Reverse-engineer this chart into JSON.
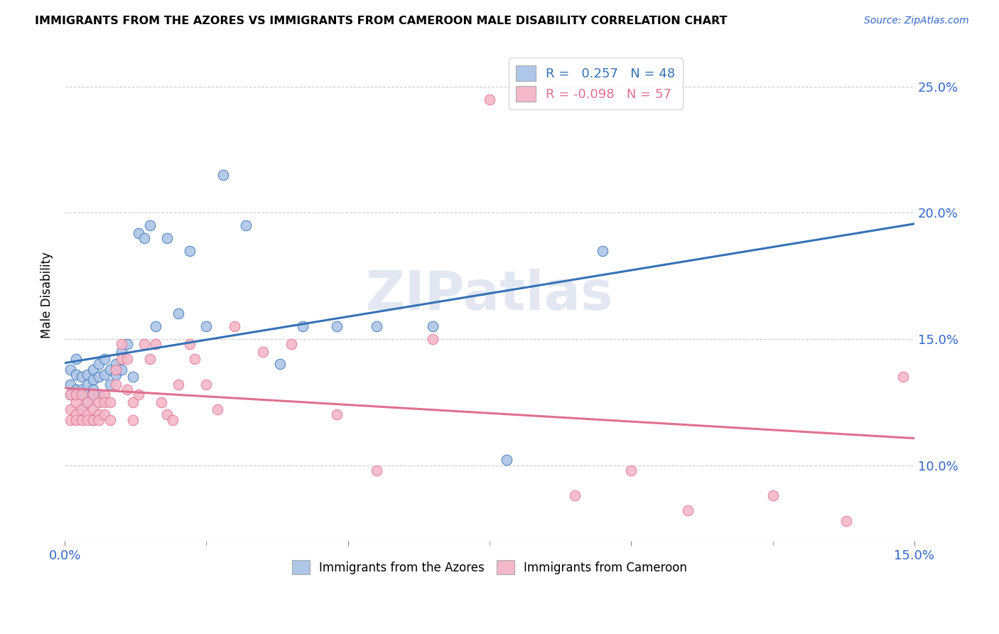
{
  "title": "IMMIGRANTS FROM THE AZORES VS IMMIGRANTS FROM CAMEROON MALE DISABILITY CORRELATION CHART",
  "source": "Source: ZipAtlas.com",
  "ylabel": "Male Disability",
  "legend1_label": "R =   0.257   N = 48",
  "legend2_label": "R = -0.098   N = 57",
  "legend1_color": "#aec6e8",
  "legend2_color": "#f4b8c8",
  "trend1_color": "#3472b5",
  "trend2_color": "#e07090",
  "watermark": "ZIPatlas",
  "azores_x": [
    0.001,
    0.001,
    0.001,
    0.002,
    0.002,
    0.002,
    0.003,
    0.003,
    0.003,
    0.003,
    0.004,
    0.004,
    0.004,
    0.004,
    0.005,
    0.005,
    0.005,
    0.005,
    0.006,
    0.006,
    0.006,
    0.007,
    0.007,
    0.008,
    0.008,
    0.009,
    0.009,
    0.01,
    0.01,
    0.011,
    0.012,
    0.013,
    0.014,
    0.015,
    0.016,
    0.018,
    0.02,
    0.022,
    0.025,
    0.028,
    0.032,
    0.038,
    0.042,
    0.048,
    0.055,
    0.065,
    0.078,
    0.095
  ],
  "azores_y": [
    0.138,
    0.132,
    0.128,
    0.136,
    0.13,
    0.142,
    0.135,
    0.13,
    0.128,
    0.122,
    0.136,
    0.132,
    0.128,
    0.125,
    0.138,
    0.134,
    0.13,
    0.118,
    0.14,
    0.135,
    0.128,
    0.142,
    0.136,
    0.138,
    0.132,
    0.14,
    0.136,
    0.145,
    0.138,
    0.148,
    0.135,
    0.192,
    0.19,
    0.195,
    0.155,
    0.19,
    0.16,
    0.185,
    0.155,
    0.215,
    0.195,
    0.14,
    0.155,
    0.155,
    0.155,
    0.155,
    0.102,
    0.185
  ],
  "cameroon_x": [
    0.001,
    0.001,
    0.001,
    0.002,
    0.002,
    0.002,
    0.002,
    0.003,
    0.003,
    0.003,
    0.004,
    0.004,
    0.004,
    0.005,
    0.005,
    0.005,
    0.006,
    0.006,
    0.006,
    0.007,
    0.007,
    0.007,
    0.008,
    0.008,
    0.009,
    0.009,
    0.01,
    0.01,
    0.011,
    0.011,
    0.012,
    0.012,
    0.013,
    0.014,
    0.015,
    0.016,
    0.017,
    0.018,
    0.019,
    0.02,
    0.022,
    0.023,
    0.025,
    0.027,
    0.03,
    0.035,
    0.04,
    0.048,
    0.055,
    0.065,
    0.075,
    0.09,
    0.1,
    0.11,
    0.125,
    0.138,
    0.148
  ],
  "cameroon_y": [
    0.122,
    0.118,
    0.128,
    0.125,
    0.12,
    0.118,
    0.128,
    0.122,
    0.118,
    0.128,
    0.12,
    0.118,
    0.125,
    0.122,
    0.118,
    0.128,
    0.12,
    0.125,
    0.118,
    0.128,
    0.125,
    0.12,
    0.118,
    0.125,
    0.138,
    0.132,
    0.142,
    0.148,
    0.13,
    0.142,
    0.125,
    0.118,
    0.128,
    0.148,
    0.142,
    0.148,
    0.125,
    0.12,
    0.118,
    0.132,
    0.148,
    0.142,
    0.132,
    0.122,
    0.155,
    0.145,
    0.148,
    0.12,
    0.098,
    0.15,
    0.245,
    0.088,
    0.098,
    0.082,
    0.088,
    0.078,
    0.135
  ],
  "xlim": [
    0.0,
    0.15
  ],
  "ylim": [
    0.07,
    0.265
  ],
  "yticks": [
    0.1,
    0.15,
    0.2,
    0.25
  ],
  "ytick_labels": [
    "10.0%",
    "15.0%",
    "20.0%",
    "25.0%"
  ],
  "xticks": [
    0.0,
    0.05,
    0.1,
    0.15
  ],
  "xtick_labels_show": [
    "0.0%",
    "",
    "",
    "15.0%"
  ]
}
